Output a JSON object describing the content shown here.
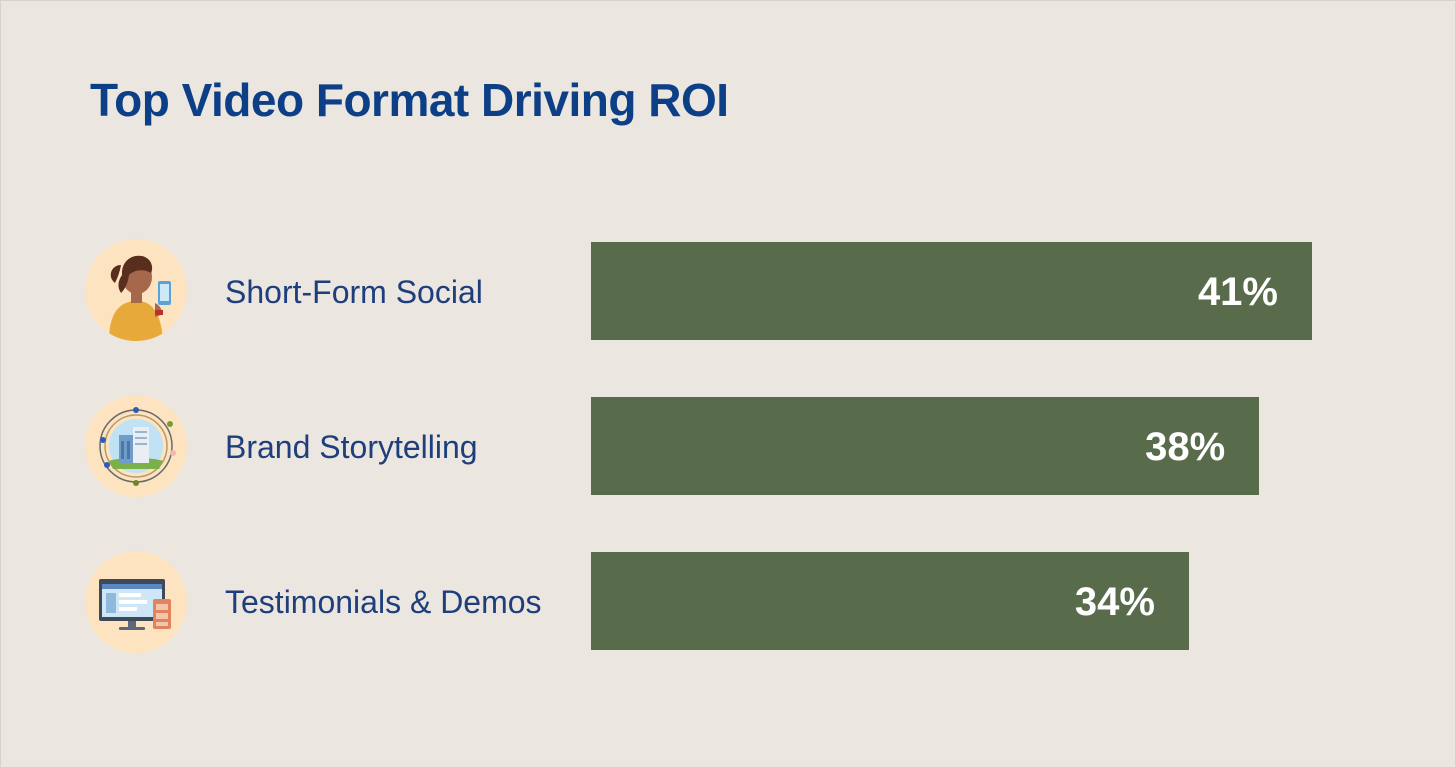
{
  "chart_data": {
    "type": "bar",
    "orientation": "horizontal",
    "title": "Top Video Format Driving ROI",
    "categories": [
      "Short-Form Social",
      "Brand Storytelling",
      "Testimonials & Demos"
    ],
    "values": [
      41,
      38,
      34
    ],
    "value_labels": [
      "41%",
      "38%",
      "34%"
    ],
    "unit": "%",
    "xlim": [
      0,
      100
    ],
    "grid": false,
    "legend": "none"
  },
  "icons": [
    "person-with-phone-icon",
    "building-globe-icon",
    "computer-monitor-icon"
  ],
  "colors": {
    "background": "#ebe6e0",
    "bar": "#586c4c",
    "title": "#0d3f87",
    "label": "#1e3f7c",
    "icon_circle": "#fde3bf"
  }
}
